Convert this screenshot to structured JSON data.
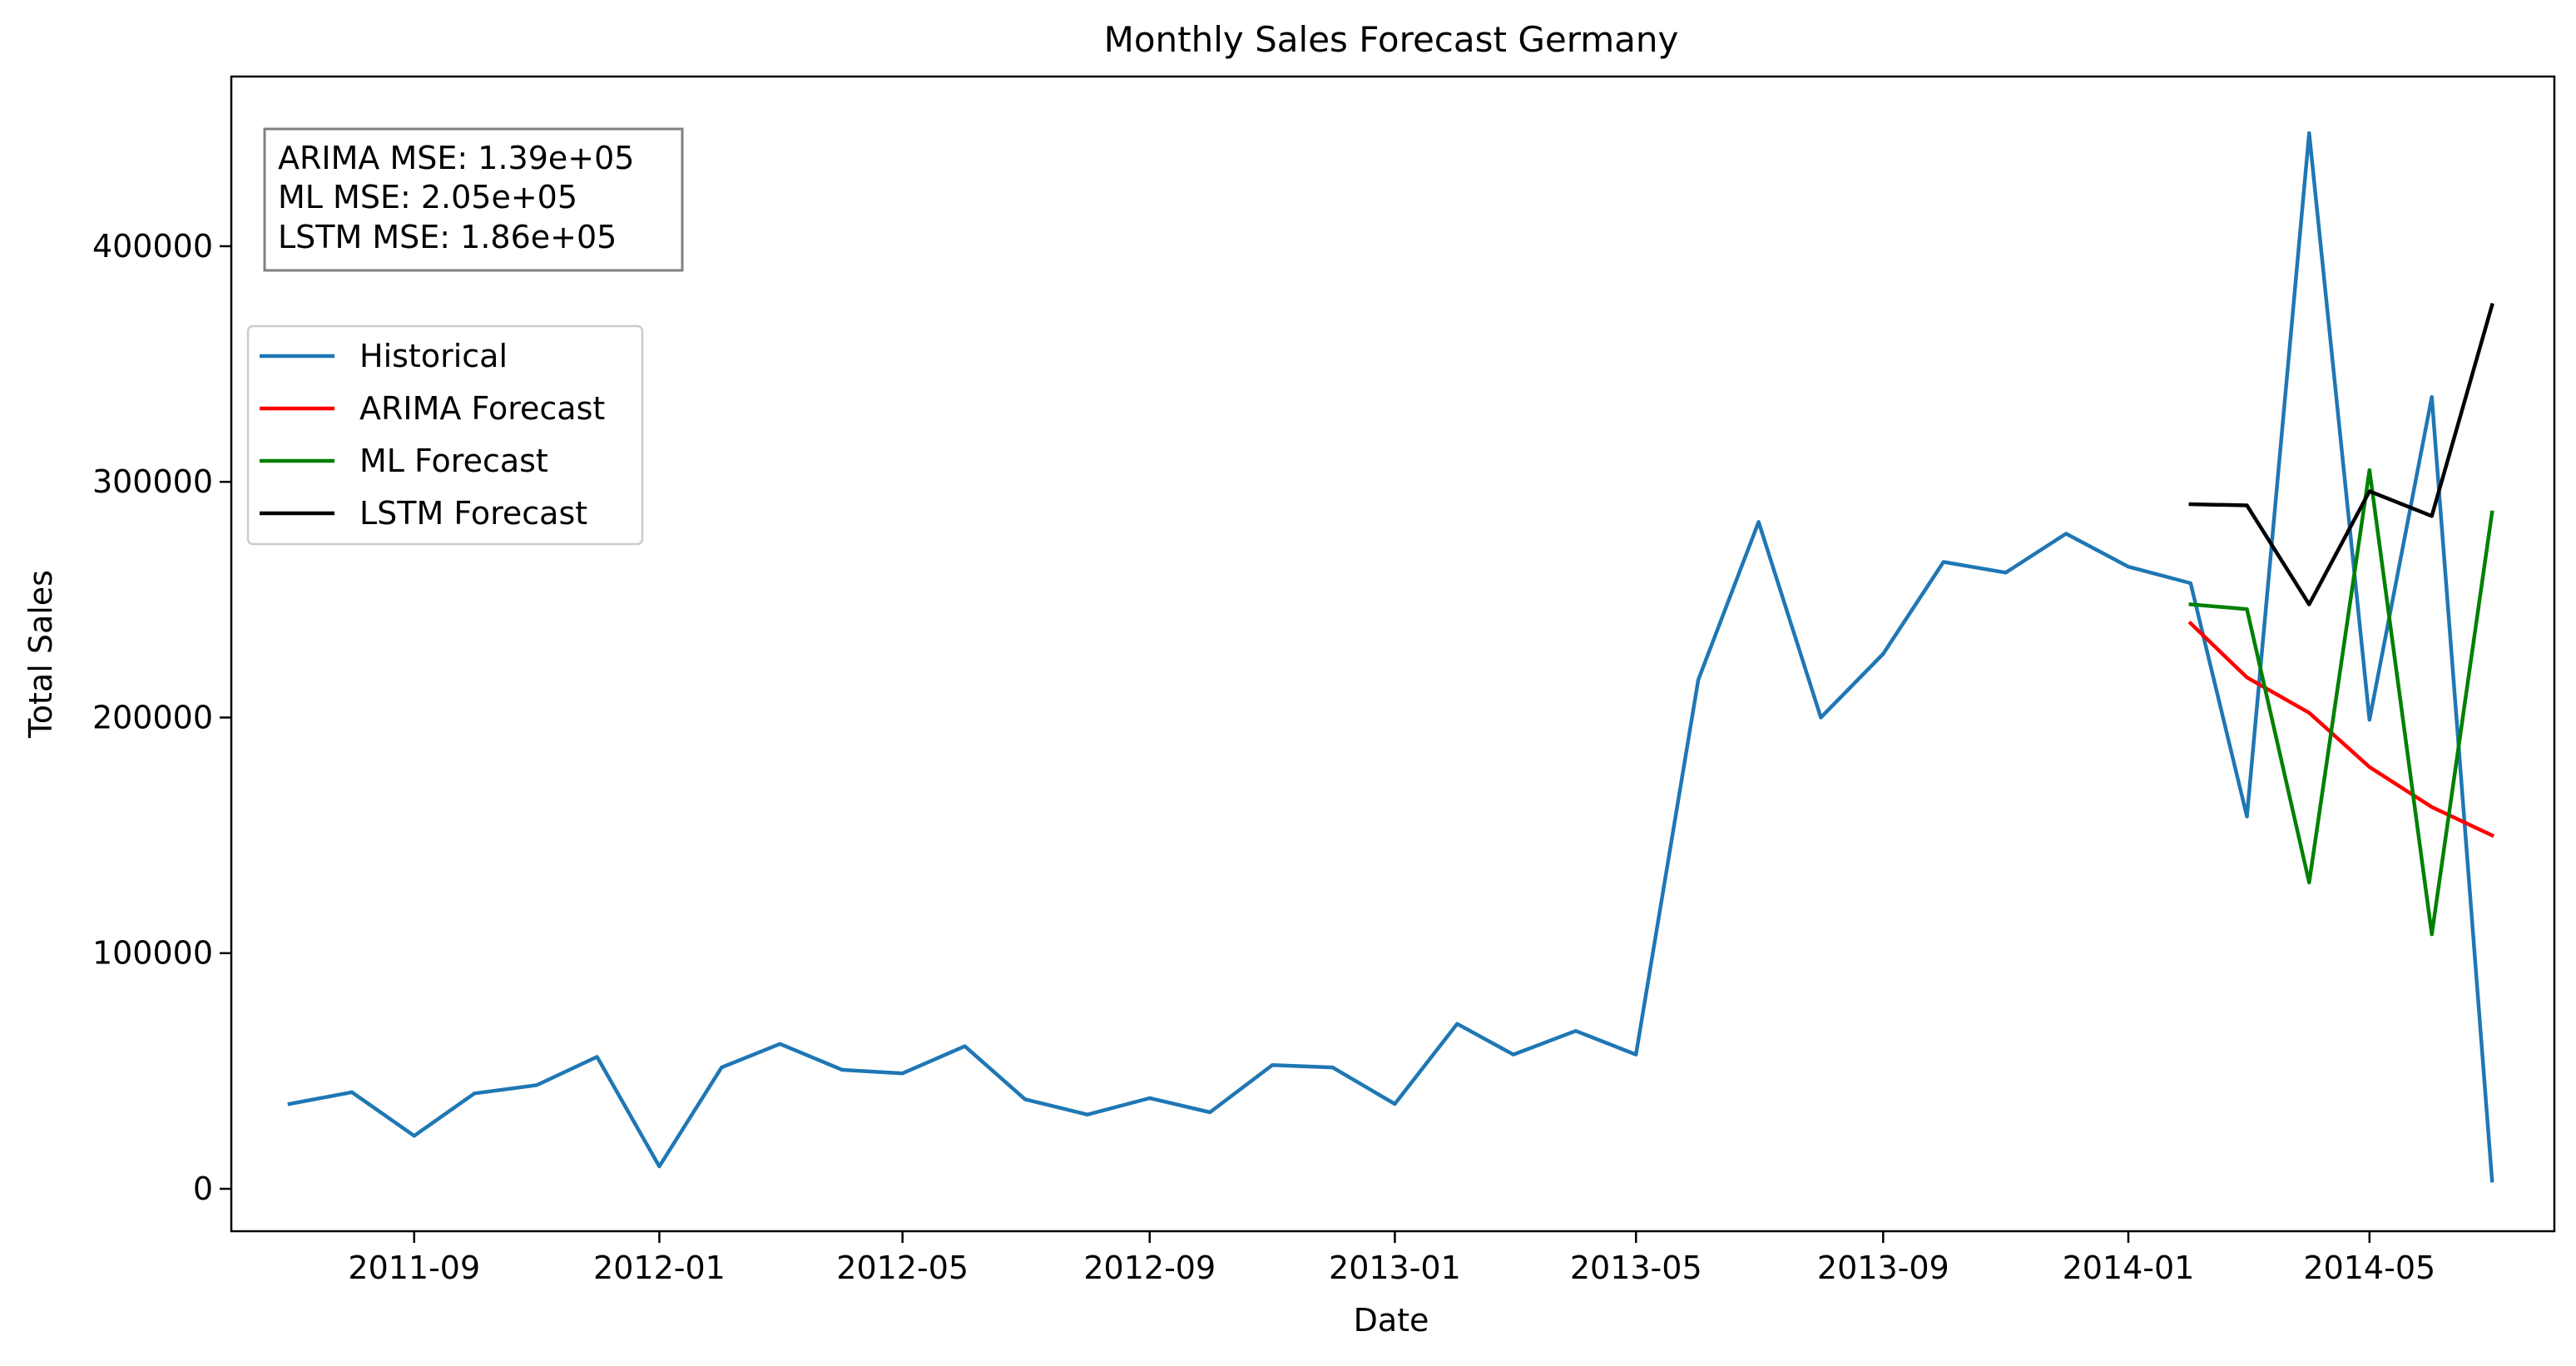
{
  "chart_data": {
    "type": "line",
    "title": "Monthly Sales Forecast Germany",
    "xlabel": "Date",
    "ylabel": "Total Sales",
    "xlim": [
      "2011-06-02",
      "2014-08-01"
    ],
    "ylim": [
      -18000,
      472000
    ],
    "x_ticks": [
      "2011-09",
      "2012-01",
      "2012-05",
      "2012-09",
      "2013-01",
      "2013-05",
      "2013-09",
      "2014-01",
      "2014-05"
    ],
    "y_ticks": [
      0,
      100000,
      200000,
      300000,
      400000
    ],
    "grid": false,
    "legend_position": "upper left",
    "metrics": [
      "ARIMA MSE: 1.39e+05",
      "ML MSE: 2.05e+05",
      "LSTM MSE: 1.86e+05"
    ],
    "series": [
      {
        "name": "Historical",
        "color": "#1f77b4",
        "points": [
          [
            "2011-07",
            36000
          ],
          [
            "2011-08",
            41000
          ],
          [
            "2011-09",
            22500
          ],
          [
            "2011-10",
            40500
          ],
          [
            "2011-11",
            44000
          ],
          [
            "2011-12",
            56000
          ],
          [
            "2012-01",
            9500
          ],
          [
            "2012-02",
            51500
          ],
          [
            "2012-03",
            61500
          ],
          [
            "2012-04",
            50500
          ],
          [
            "2012-05",
            49000
          ],
          [
            "2012-06",
            60500
          ],
          [
            "2012-07",
            38000
          ],
          [
            "2012-08",
            31500
          ],
          [
            "2012-09",
            38500
          ],
          [
            "2012-10",
            32500
          ],
          [
            "2012-11",
            52500
          ],
          [
            "2012-12",
            51500
          ],
          [
            "2013-01",
            36000
          ],
          [
            "2013-02",
            70000
          ],
          [
            "2013-03",
            57000
          ],
          [
            "2013-04",
            67000
          ],
          [
            "2013-05",
            57000
          ],
          [
            "2013-06",
            216000
          ],
          [
            "2013-07",
            283000
          ],
          [
            "2013-08",
            200000
          ],
          [
            "2013-09",
            227000
          ],
          [
            "2013-10",
            266000
          ],
          [
            "2013-11",
            261500
          ],
          [
            "2013-12",
            278000
          ],
          [
            "2014-01",
            264000
          ],
          [
            "2014-02",
            257000
          ],
          [
            "2014-03",
            158000
          ],
          [
            "2014-04",
            448000
          ],
          [
            "2014-05",
            199000
          ],
          [
            "2014-06",
            336000
          ],
          [
            "2014-07",
            3500
          ]
        ]
      },
      {
        "name": "ARIMA Forecast",
        "color": "#ff0000",
        "points": [
          [
            "2014-02",
            240000
          ],
          [
            "2014-03",
            217000
          ],
          [
            "2014-04",
            202000
          ],
          [
            "2014-05",
            179000
          ],
          [
            "2014-06",
            162000
          ],
          [
            "2014-07",
            150000
          ]
        ]
      },
      {
        "name": "ML Forecast",
        "color": "#008000",
        "points": [
          [
            "2014-02",
            248000
          ],
          [
            "2014-03",
            246000
          ],
          [
            "2014-04",
            130000
          ],
          [
            "2014-05",
            305000
          ],
          [
            "2014-06",
            108000
          ],
          [
            "2014-07",
            287000
          ]
        ]
      },
      {
        "name": "LSTM Forecast",
        "color": "#000000",
        "points": [
          [
            "2014-02",
            290500
          ],
          [
            "2014-03",
            290000
          ],
          [
            "2014-04",
            248000
          ],
          [
            "2014-05",
            296000
          ],
          [
            "2014-06",
            285500
          ],
          [
            "2014-07",
            375000
          ]
        ]
      }
    ]
  }
}
